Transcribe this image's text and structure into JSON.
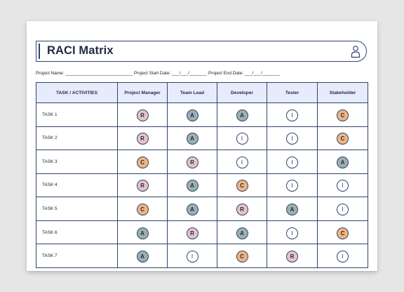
{
  "header": {
    "title": "RACI Matrix"
  },
  "meta": {
    "project_name_label": "Project Name: ___________________________",
    "start_date_label": "Project Start Date: ___/___/_______",
    "end_date_label": "Project End Date: ___/___/_______"
  },
  "table": {
    "columns": [
      "TASK / ACTIVITIES",
      "Project Manager",
      "Team Lead",
      "Developer",
      "Tester",
      "Stakeholder"
    ],
    "rows": [
      {
        "task": "TASK 1",
        "values": [
          "R",
          "A",
          "A",
          "I",
          "C"
        ]
      },
      {
        "task": "TASK 2",
        "values": [
          "R",
          "A",
          "I",
          "I",
          "C"
        ]
      },
      {
        "task": "TASK 3",
        "values": [
          "C",
          "R",
          "I",
          "I",
          "A"
        ]
      },
      {
        "task": "TASK 4",
        "values": [
          "R",
          "A",
          "C",
          "I",
          "I"
        ]
      },
      {
        "task": "TASK 5",
        "values": [
          "C",
          "A",
          "R",
          "A",
          "I"
        ]
      },
      {
        "task": "TASK 6",
        "values": [
          "A",
          "R",
          "A",
          "I",
          "C"
        ]
      },
      {
        "task": "TASK 7",
        "values": [
          "A",
          "I",
          "C",
          "R",
          "I"
        ]
      }
    ]
  },
  "colors": {
    "R": "#e6c4c8",
    "A": "#9cb0b0",
    "C": "#f0b57e",
    "I": "#ffffff",
    "border": "#2f4371",
    "header_fill": "#e6ecfb"
  },
  "icons": {
    "header_icon": "person-icon"
  }
}
